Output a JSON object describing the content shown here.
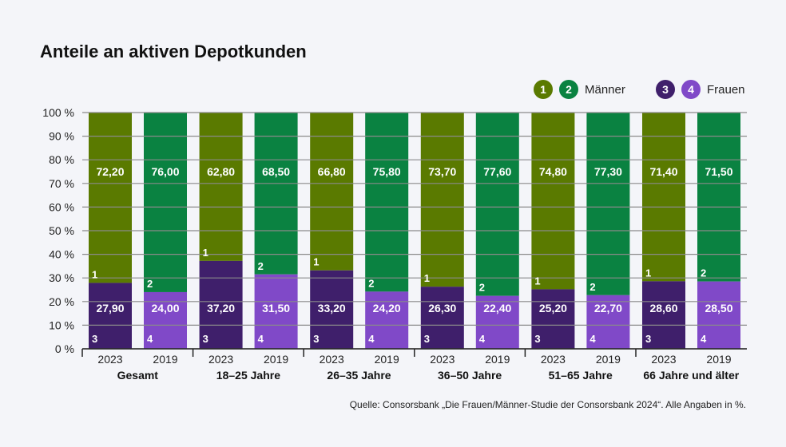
{
  "title": "Anteile an aktiven Depotkunden",
  "source": "Quelle: Consorsbank „Die Frauen/Männer-Studie der Consorsbank 2024“. Alle Angaben in %.",
  "legend": [
    {
      "markers": [
        "1",
        "2"
      ],
      "label": "Männer",
      "colors": [
        "#5a7a00",
        "#0a8241"
      ]
    },
    {
      "markers": [
        "3",
        "4"
      ],
      "label": "Frauen",
      "colors": [
        "#3f1f6b",
        "#8049c8"
      ]
    }
  ],
  "chart_data": {
    "type": "bar",
    "stacked": true,
    "title": "Anteile an aktiven Depotkunden",
    "ylim": [
      0,
      100
    ],
    "yticks": [
      "0 %",
      "10 %",
      "20 %",
      "30 %",
      "40 %",
      "50 %",
      "60 %",
      "70 %",
      "80 %",
      "90 %",
      "100 %"
    ],
    "grid": true,
    "legend_position": "top-right",
    "groups": [
      "Gesamt",
      "18–25 Jahre",
      "26–35 Jahre",
      "36–50 Jahre",
      "51–65 Jahre",
      "66 Jahre und älter"
    ],
    "years": [
      "2023",
      "2019"
    ],
    "series": [
      {
        "name": "Frauen",
        "values_2023": [
          "27,90",
          "37,20",
          "33,20",
          "26,30",
          "25,20",
          "28,60"
        ],
        "values_2019": [
          "24,00",
          "31,50",
          "24,20",
          "22,40",
          "22,70",
          "28,50"
        ],
        "markers": [
          "3",
          "4"
        ]
      },
      {
        "name": "Männer",
        "values_2023": [
          "72,20",
          "62,80",
          "66,80",
          "73,70",
          "74,80",
          "71,40"
        ],
        "values_2019": [
          "76,00",
          "68,50",
          "75,80",
          "77,60",
          "77,30",
          "71,50"
        ],
        "markers": [
          "1",
          "2"
        ]
      }
    ],
    "colors": {
      "men_2023": "#5a7a00",
      "men_2019": "#0a8241",
      "women_2023": "#3f1f6b",
      "women_2019": "#8049c8"
    }
  }
}
